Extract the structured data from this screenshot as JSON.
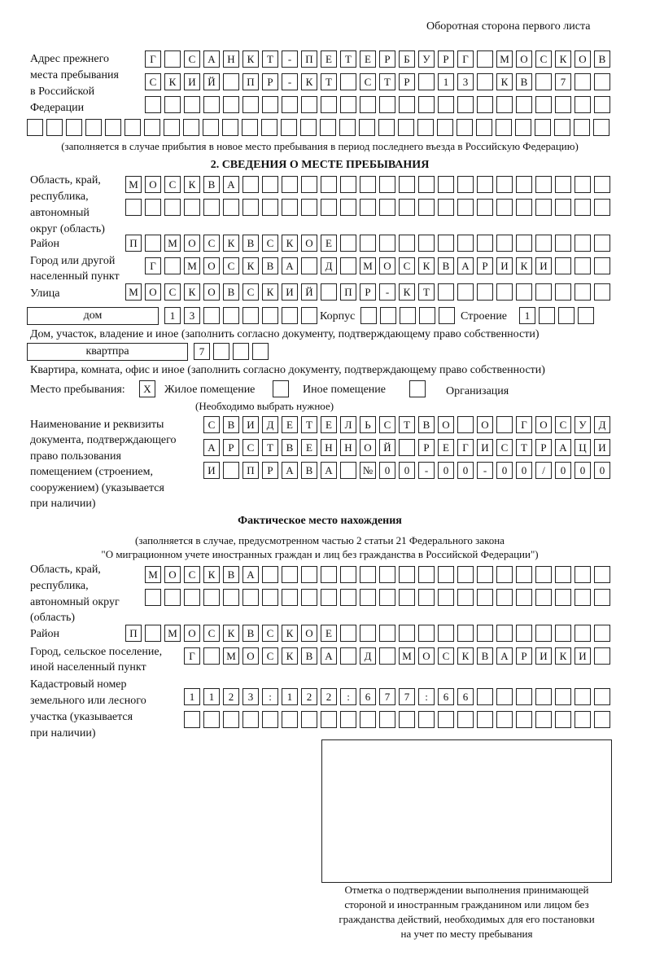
{
  "header": "Оборотная сторона первого листа",
  "prev_address": {
    "label": [
      "Адрес прежнего",
      "места пребывания",
      "в Российской",
      "Федерации"
    ],
    "rows": [
      "Г САНКТ-ПЕТЕРБУРГ МОСКОВ",
      "СКИЙ ПР-КТ СТР 13 КВ 7  ",
      "                        ",
      "                              "
    ],
    "note": "(заполняется в случае прибытия в новое место пребывания в период последнего въезда в Российскую Федерацию)"
  },
  "section2": {
    "title": "2. СВЕДЕНИЯ О МЕСТЕ ПРЕБЫВАНИЯ",
    "region_label": [
      "Область, край,",
      "республика,",
      "автономный",
      "округ (область)"
    ],
    "region_rows": [
      "МОСКВА                   ",
      "                         "
    ],
    "district_label": "Район",
    "district_row": "П МОСКВСКОЕ              ",
    "city_label": [
      "Город или другой",
      "населенный пункт"
    ],
    "city_row": "Г МОСКВА Д МОСКВАРИКИ   ",
    "street_label": "Улица",
    "street_row": "МОСКОВСКИЙ ПР-КТ         ",
    "house_type": "дом",
    "house_row": "13      ",
    "korpus_label": "Корпус",
    "korpus_row": "     ",
    "building_label": "Строение",
    "building_row": "1   ",
    "house_note": "Дом, участок, владение и иное (заполнить согласно документу, подтверждающему право собственности)",
    "apt_type": "квартпра",
    "apt_row": "7   ",
    "apt_note": "Квартира, комната, офис и иное (заполнить согласно документу, подтверждающему право собственности)",
    "stay_label": "Место пребывания:",
    "stay_options": [
      {
        "label": "Жилое помещение",
        "mark": "X"
      },
      {
        "label": "Иное помещение",
        "mark": ""
      },
      {
        "label": "Организация",
        "mark": ""
      }
    ],
    "stay_note": "(Необходимо выбрать нужное)",
    "doc_label": [
      "Наименование и реквизиты",
      "документа, подтверждающего",
      "право пользования",
      "помещением (строением,",
      "сооружением) (указывается",
      "при наличии)"
    ],
    "doc_rows": [
      "СВИДЕТЕЛЬСТВО О ГОСУД",
      "АРСТВЕННОЙ РЕГИСТРАЦИ",
      "И ПРАВА №00-00-00/000"
    ]
  },
  "actual": {
    "title": "Фактическое место нахождения",
    "note": [
      "(заполняется в случае, предусмотренном частью 2 статьи 21 Федерального закона",
      "\"О миграционном учете иностранных граждан и лиц без гражданства в Российской Федерации\")"
    ],
    "region_label": [
      "Область, край,",
      "республика,",
      "автономный округ",
      "(область)"
    ],
    "region_rows": [
      "МОСКВА                  ",
      "                        "
    ],
    "district_label": "Район",
    "district_row": "П МОСКВСКОЕ              ",
    "city_label": [
      "Город, сельское поселение,",
      "иной населенный пункт"
    ],
    "city_row": "Г МОСКВА Д МОСКВАРИКИ ",
    "cadastral_label": [
      "Кадастровый номер",
      "земельного или лесного",
      "участка (указывается",
      "при наличии)"
    ],
    "cadastral_rows": [
      "1123:122:677:66       ",
      "                      "
    ]
  },
  "stamp_caption": [
    "Отметка о подтверждении выполнения принимающей",
    "стороной и иностранным гражданином или лицом без",
    "гражданства действий, необходимых для его постановки",
    "на учет по месту пребывания"
  ]
}
